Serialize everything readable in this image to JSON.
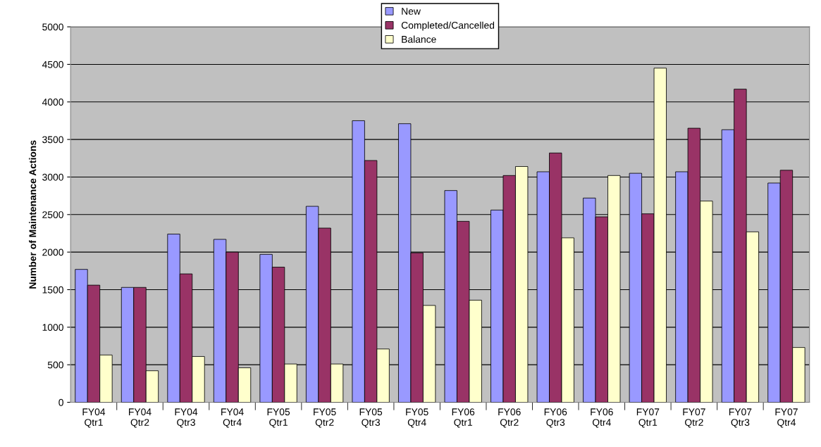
{
  "chart_data": {
    "type": "bar",
    "ylabel": "Number of Maintenance Actions",
    "categories": [
      "FY04\nQtr1",
      "FY04\nQtr2",
      "FY04\nQtr3",
      "FY04\nQtr4",
      "FY05\nQtr1",
      "FY05\nQtr2",
      "FY05\nQtr3",
      "FY05\nQtr4",
      "FY06\nQtr1",
      "FY06\nQtr2",
      "FY06\nQtr3",
      "FY06\nQtr4",
      "FY07\nQtr1",
      "FY07\nQtr2",
      "FY07\nQtr3",
      "FY07\nQtr4"
    ],
    "series": [
      {
        "name": "New",
        "color": "#9999ff",
        "values": [
          1770,
          1530,
          2240,
          2170,
          1970,
          2610,
          3750,
          3710,
          2820,
          2560,
          3070,
          2720,
          3050,
          3070,
          3630,
          2920
        ]
      },
      {
        "name": "Completed/Cancelled",
        "color": "#993366",
        "values": [
          1560,
          1530,
          1710,
          2000,
          1800,
          2320,
          3220,
          1990,
          2410,
          3020,
          3320,
          2470,
          2510,
          3650,
          4170,
          3090
        ]
      },
      {
        "name": "Balance",
        "color": "#ffffcc",
        "values": [
          630,
          420,
          610,
          460,
          510,
          510,
          710,
          1290,
          1360,
          3140,
          2190,
          3020,
          4450,
          2680,
          2270,
          730
        ]
      }
    ],
    "ylim": [
      0,
      5000
    ],
    "yticks": [
      0,
      500,
      1000,
      1500,
      2000,
      2500,
      3000,
      3500,
      4000,
      4500,
      5000
    ],
    "grid": "y",
    "legend": "top"
  }
}
